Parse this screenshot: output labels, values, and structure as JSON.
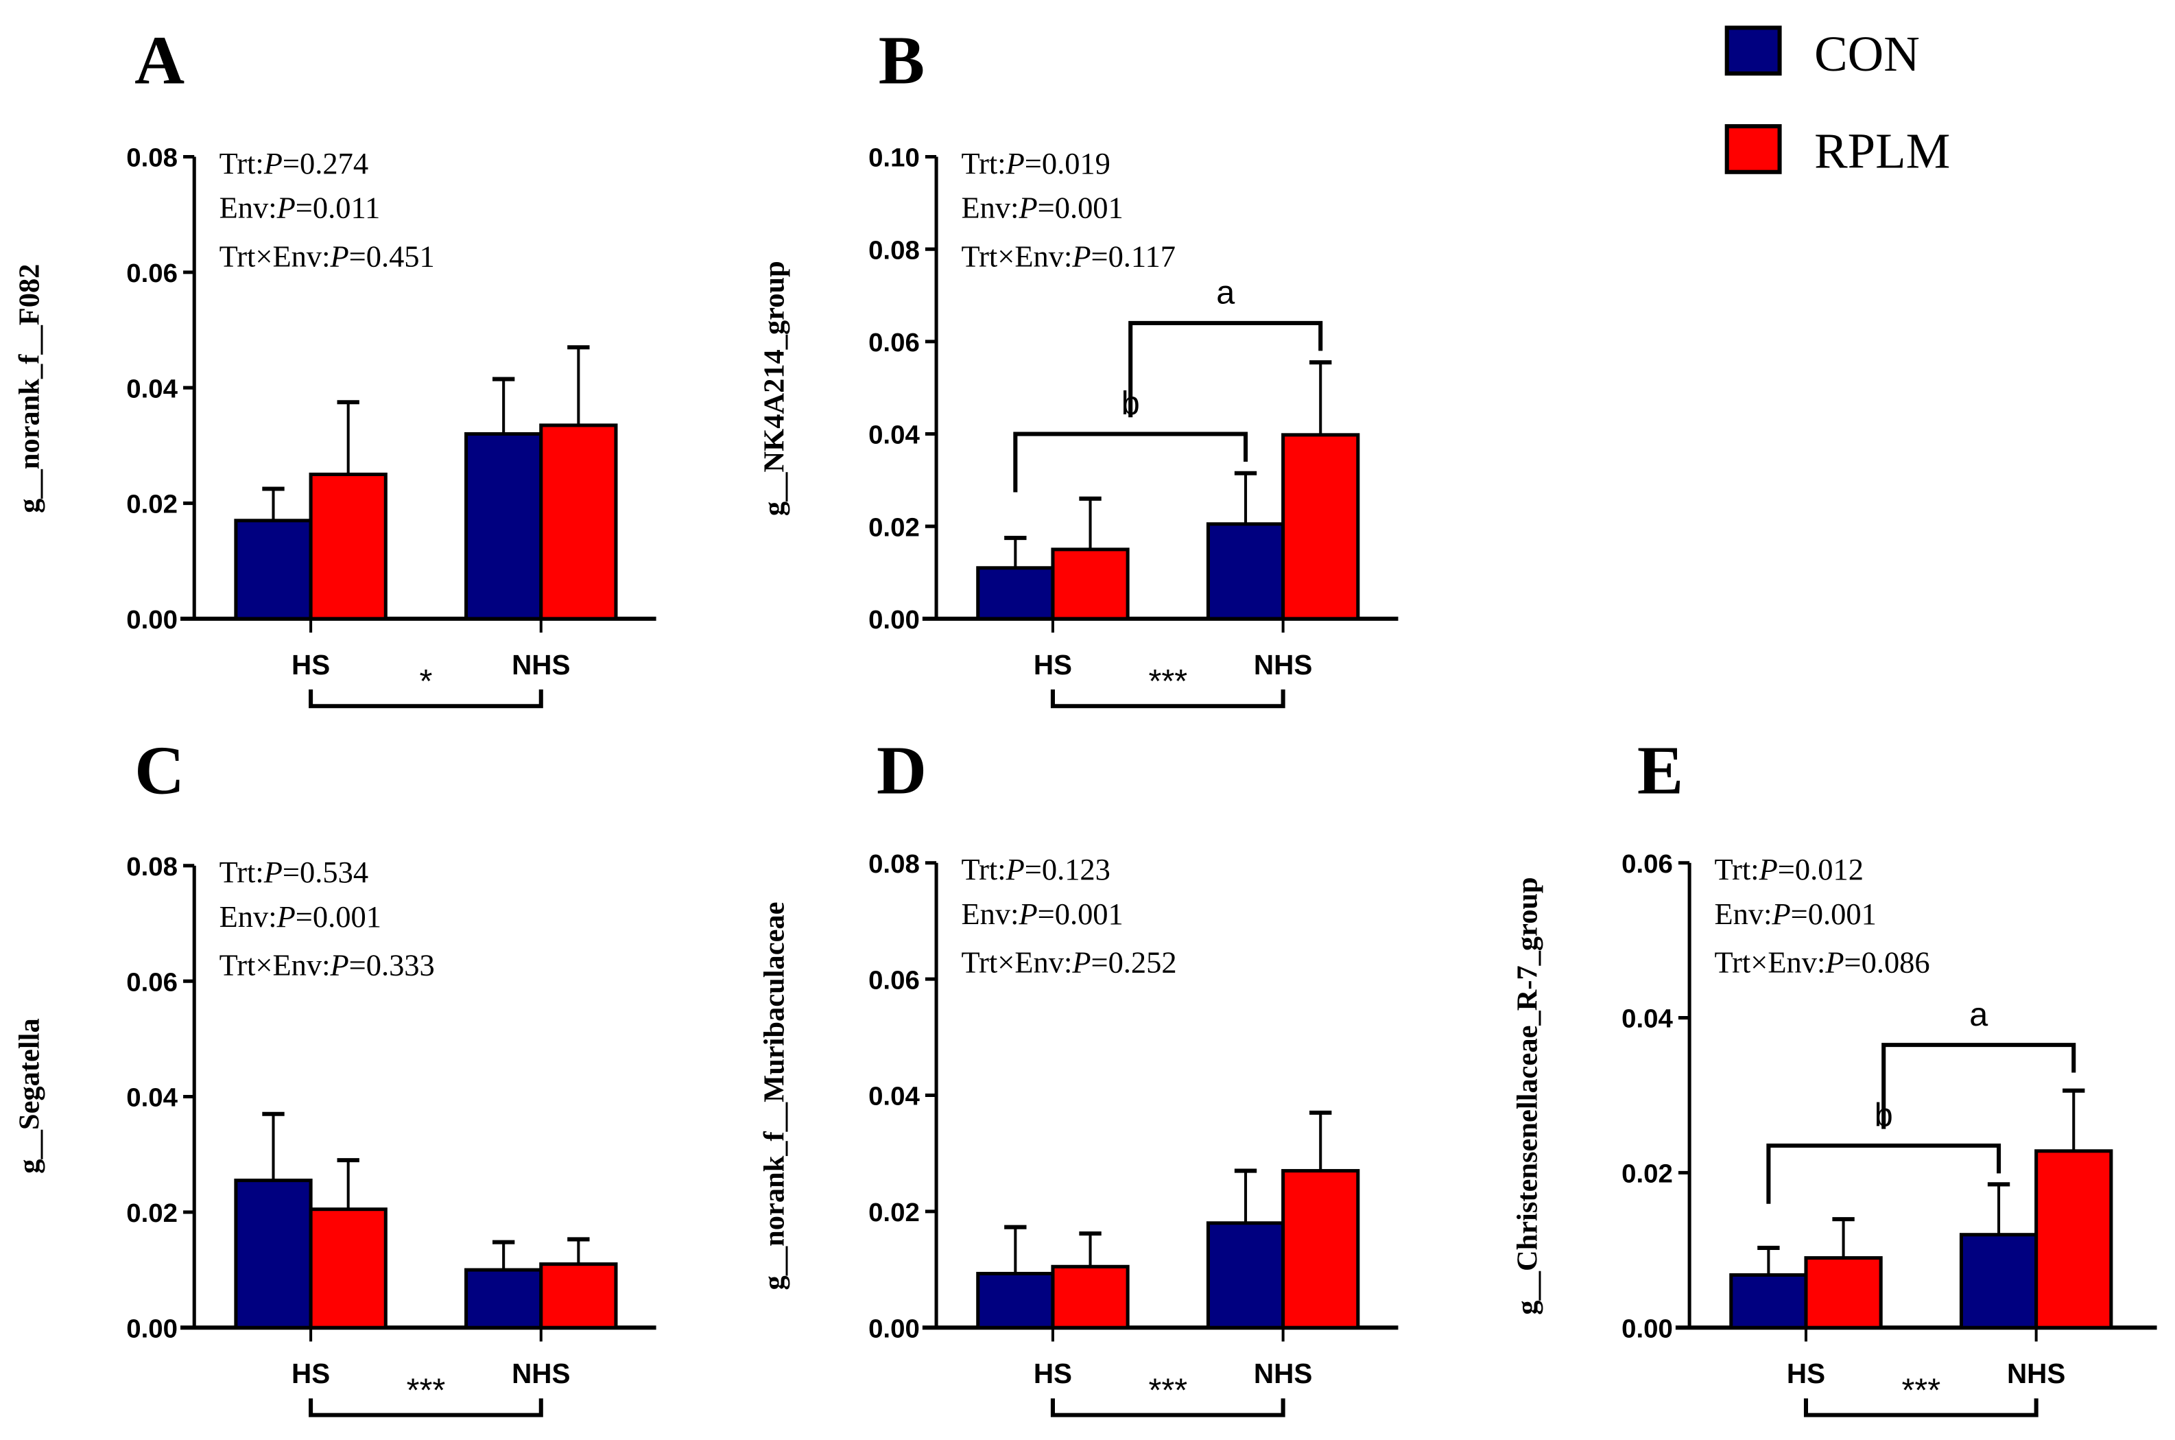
{
  "legend": [
    {
      "name": "CON",
      "color": "#000080"
    },
    {
      "name": "RPLM",
      "color": "#ff0000"
    }
  ],
  "chart_data": [
    {
      "type": "bar",
      "panel": "A",
      "ylabel": "g__norank_f__F082",
      "categories": [
        "HS",
        "NHS"
      ],
      "ylim": [
        0,
        0.08
      ],
      "yticks": [
        "0.00",
        "0.02",
        "0.04",
        "0.06",
        "0.08"
      ],
      "series": [
        {
          "name": "CON",
          "values": [
            0.017,
            0.032
          ],
          "errors": [
            0.0055,
            0.0095
          ]
        },
        {
          "name": "RPLM",
          "values": [
            0.025,
            0.0335
          ],
          "errors": [
            0.0125,
            0.0135
          ]
        }
      ],
      "stats": [
        "Trt:",
        "P",
        "=0.274",
        "Env:",
        "P",
        "=0.011",
        "Trt×Env:",
        "P",
        "=0.451"
      ],
      "env_sig": "*",
      "pair_letters": []
    },
    {
      "type": "bar",
      "panel": "B",
      "ylabel": "g__NK4A214_group",
      "categories": [
        "HS",
        "NHS"
      ],
      "ylim": [
        0,
        0.1
      ],
      "yticks": [
        "0.00",
        "0.02",
        "0.04",
        "0.06",
        "0.08",
        "0.10"
      ],
      "series": [
        {
          "name": "CON",
          "values": [
            0.011,
            0.0205
          ],
          "errors": [
            0.0065,
            0.011
          ]
        },
        {
          "name": "RPLM",
          "values": [
            0.015,
            0.0398
          ],
          "errors": [
            0.011,
            0.0157
          ]
        }
      ],
      "stats": [
        "Trt:",
        "P",
        "=0.019",
        "Env:",
        "P",
        "=0.001",
        "Trt×Env:",
        "P",
        "=0.117"
      ],
      "env_sig": "***",
      "pair_letters": [
        "b",
        "a"
      ]
    },
    {
      "type": "bar",
      "panel": "C",
      "ylabel": "g__Segatella",
      "categories": [
        "HS",
        "NHS"
      ],
      "ylim": [
        0,
        0.08
      ],
      "yticks": [
        "0.00",
        "0.02",
        "0.04",
        "0.06",
        "0.08"
      ],
      "series": [
        {
          "name": "CON",
          "values": [
            0.0255,
            0.01
          ],
          "errors": [
            0.0115,
            0.0048
          ]
        },
        {
          "name": "RPLM",
          "values": [
            0.0205,
            0.011
          ],
          "errors": [
            0.0085,
            0.0043
          ]
        }
      ],
      "stats": [
        "Trt:",
        "P",
        "=0.534",
        "Env:",
        "P",
        "=0.001",
        "Trt×Env:",
        "P",
        "=0.333"
      ],
      "env_sig": "***",
      "pair_letters": []
    },
    {
      "type": "bar",
      "panel": "D",
      "ylabel": "g__norank_f__Muribaculaceae",
      "categories": [
        "HS",
        "NHS"
      ],
      "ylim": [
        0,
        0.08
      ],
      "yticks": [
        "0.00",
        "0.02",
        "0.04",
        "0.06",
        "0.08"
      ],
      "series": [
        {
          "name": "CON",
          "values": [
            0.0093,
            0.018
          ],
          "errors": [
            0.008,
            0.009
          ]
        },
        {
          "name": "RPLM",
          "values": [
            0.0105,
            0.027
          ],
          "errors": [
            0.0057,
            0.01
          ]
        }
      ],
      "stats": [
        "Trt:",
        "P",
        "=0.123",
        "Env:",
        "P",
        "=0.001",
        "Trt×Env:",
        "P",
        "=0.252"
      ],
      "env_sig": "***",
      "pair_letters": []
    },
    {
      "type": "bar",
      "panel": "E",
      "ylabel": "g__Christensenellaceae_R-7_group",
      "categories": [
        "HS",
        "NHS"
      ],
      "ylim": [
        0,
        0.06
      ],
      "yticks": [
        "0.00",
        "0.02",
        "0.04",
        "0.06"
      ],
      "series": [
        {
          "name": "CON",
          "values": [
            0.0068,
            0.012
          ],
          "errors": [
            0.0035,
            0.0065
          ]
        },
        {
          "name": "RPLM",
          "values": [
            0.009,
            0.0228
          ],
          "errors": [
            0.005,
            0.0078
          ]
        }
      ],
      "stats": [
        "Trt:",
        "P",
        "=0.012",
        "Env:",
        "P",
        "=0.001",
        "Trt×Env:",
        "P",
        "=0.086"
      ],
      "env_sig": "***",
      "pair_letters": [
        "b",
        "a"
      ]
    }
  ]
}
